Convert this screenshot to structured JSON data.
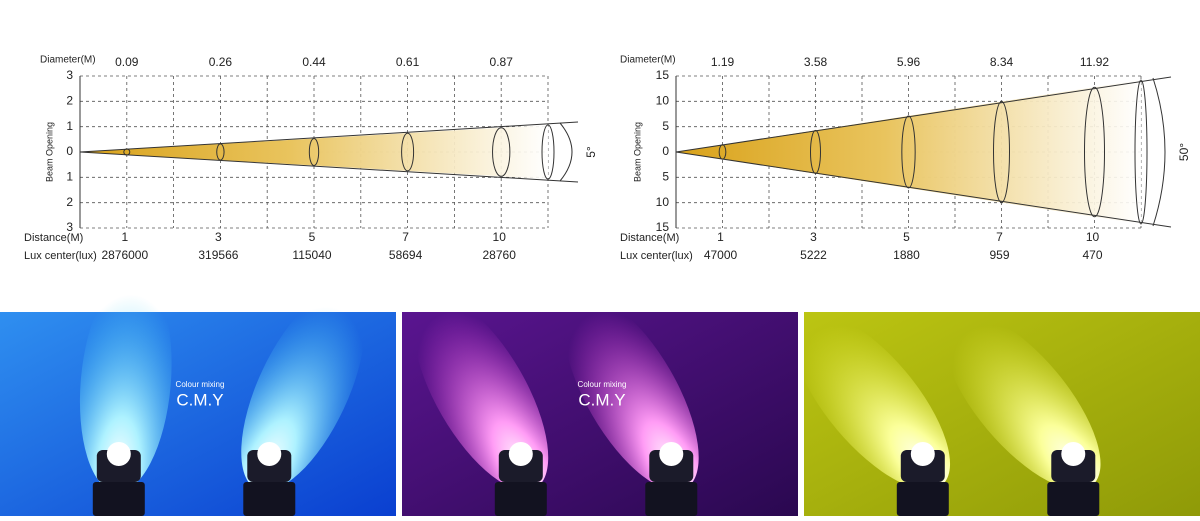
{
  "diagrams": [
    {
      "diameter_label": "Diameter(M)",
      "diameters": [
        0.09,
        0.26,
        0.44,
        0.61,
        0.87
      ],
      "y_axis_label": "Beam Opening",
      "y_ticks": [
        3,
        2,
        1,
        0,
        1,
        2,
        3
      ],
      "distance_label": "Distance(M)",
      "distances": [
        1,
        3,
        5,
        7,
        10
      ],
      "lux_label": "Lux center(lux)",
      "lux": [
        2876000,
        319566,
        115040,
        58694,
        28760
      ],
      "angle": "5°"
    },
    {
      "diameter_label": "Diameter(M)",
      "diameters": [
        1.19,
        3.58,
        5.96,
        8.34,
        11.92
      ],
      "y_axis_label": "Beam Opening",
      "y_ticks": [
        15,
        10,
        5,
        0,
        5,
        10,
        15
      ],
      "distance_label": "Distance(M)",
      "distances": [
        1,
        3,
        5,
        7,
        10
      ],
      "lux_label": "Lux center(lux)",
      "lux": [
        47000,
        5222,
        1880,
        959,
        470
      ],
      "angle": "50°"
    }
  ],
  "photos": [
    {
      "caption_small": "Colour mixing",
      "caption": "C.M.Y"
    },
    {
      "caption_small": "Colour mixing",
      "caption": "C.M.Y"
    },
    {}
  ]
}
